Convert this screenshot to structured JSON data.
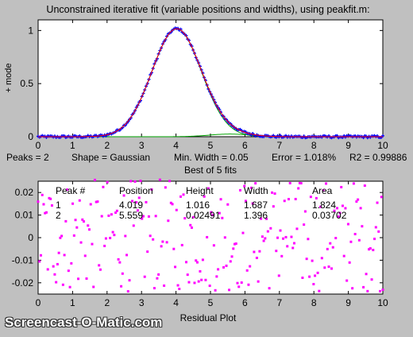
{
  "window_title": "Unconstrained iterative fit (variable positions and widths), using peakfit.m:",
  "fit_info": {
    "peaks": "Peaks = 2",
    "shape": "Shape = Gaussian",
    "min_width": "Min. Width = 0.05",
    "error": "Error = 1.018%",
    "r2": "R2 = 0.99886",
    "best_of": "Best of 5 fits"
  },
  "results_table": {
    "headers": [
      "Peak #",
      "Position",
      "Height",
      "Width",
      "Area"
    ],
    "rows": [
      [
        "1",
        "4.019",
        "1.016",
        "1.687",
        "1.824"
      ],
      [
        "2",
        "5.559",
        "0.02491",
        "1.396",
        "0.03702"
      ]
    ]
  },
  "watermark": "Screencast-O-Matic.com",
  "colors": {
    "background": "#c0c0c0",
    "data": "#0000ff",
    "fit": "#ff0000",
    "component": "#00a000",
    "residual": "#ff00ff"
  },
  "chart_data": [
    {
      "type": "line",
      "title": "",
      "xlabel": "",
      "ylabel": "+ mode",
      "xlim": [
        0,
        10
      ],
      "ylim": [
        0,
        1.1
      ],
      "xticks": [
        0,
        1,
        2,
        3,
        4,
        5,
        6,
        7,
        8,
        9,
        10
      ],
      "yticks": [
        0,
        0.5,
        1
      ],
      "grid": false,
      "legend": "none",
      "peaks": [
        {
          "position": 4.019,
          "height": 1.016,
          "width": 1.687
        },
        {
          "position": 5.559,
          "height": 0.02491,
          "width": 1.396
        }
      ],
      "series": [
        {
          "role": "data",
          "style": "blue-dot-markers",
          "x_range": [
            0,
            10
          ],
          "points": 250
        },
        {
          "role": "fit",
          "style": "red-line"
        },
        {
          "role": "components",
          "style": "green-lines"
        }
      ]
    },
    {
      "type": "scatter",
      "title": "",
      "xlabel": "Residual Plot",
      "ylabel": "",
      "xlim": [
        0,
        10
      ],
      "ylim": [
        -0.025,
        0.025
      ],
      "xticks": [
        0,
        1,
        2,
        3,
        4,
        5,
        6,
        7,
        8,
        9,
        10
      ],
      "yticks": [
        -0.02,
        -0.01,
        0,
        0.01,
        0.02
      ],
      "grid": false,
      "legend": "none",
      "series": [
        {
          "role": "residuals",
          "style": "magenta-markers",
          "range": [
            -0.024,
            0.026
          ],
          "points": 250
        }
      ]
    }
  ]
}
